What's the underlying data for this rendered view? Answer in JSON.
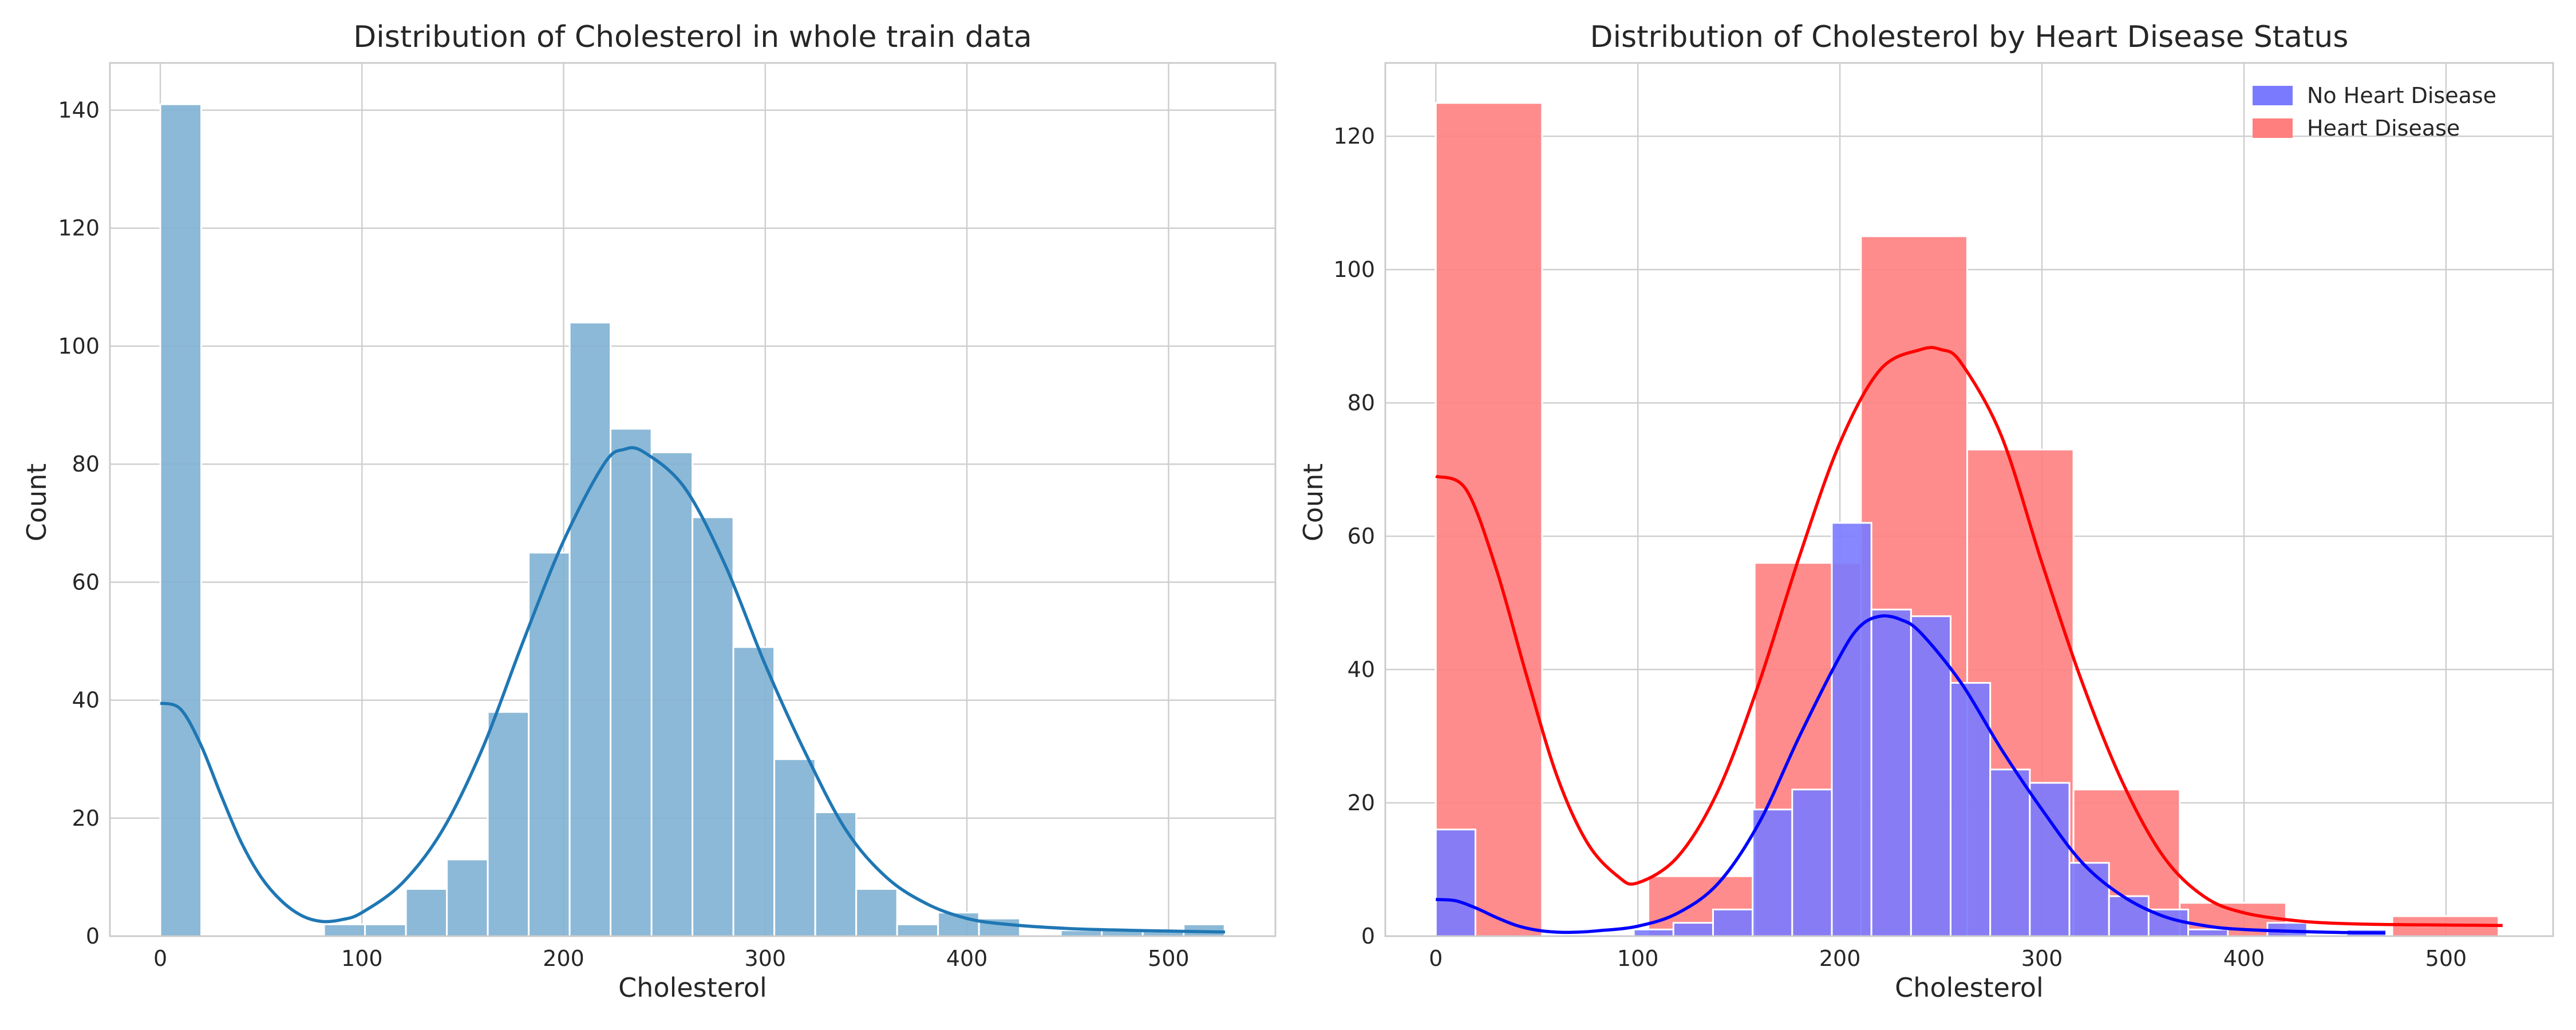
{
  "colors": {
    "all_bars": "#80b1d3",
    "all_kde": "#1f77b4",
    "no_hd_bars": "#7a7aff",
    "no_hd_kde": "#0000ff",
    "hd_bars": "#ff7f7f",
    "hd_kde": "#ff0000",
    "grid": "#cfcfcf",
    "background": "#ffffff"
  },
  "chart_data": [
    {
      "type": "bar",
      "subtype": "histogram",
      "title": "Distribution of Cholesterol in whole train data",
      "xlabel": "Cholesterol",
      "ylabel": "Count",
      "xlim": [
        -25,
        553
      ],
      "ylim": [
        0,
        148
      ],
      "xticks": [
        0,
        100,
        200,
        300,
        400,
        500
      ],
      "yticks": [
        0,
        20,
        40,
        60,
        80,
        100,
        120,
        140
      ],
      "grid": true,
      "bin_width": 20.3,
      "series": [
        {
          "kind": "bars",
          "color_key": "all_bars",
          "bins": [
            {
              "x0": 0,
              "x1": 20.3,
              "count": 141
            },
            {
              "x0": 81.2,
              "x1": 101.5,
              "count": 2
            },
            {
              "x0": 101.5,
              "x1": 121.8,
              "count": 2
            },
            {
              "x0": 121.8,
              "x1": 142.1,
              "count": 8
            },
            {
              "x0": 142.1,
              "x1": 162.4,
              "count": 13
            },
            {
              "x0": 162.4,
              "x1": 182.7,
              "count": 38
            },
            {
              "x0": 182.7,
              "x1": 203.0,
              "count": 65
            },
            {
              "x0": 203.0,
              "x1": 223.3,
              "count": 104
            },
            {
              "x0": 223.3,
              "x1": 243.6,
              "count": 86
            },
            {
              "x0": 243.6,
              "x1": 263.9,
              "count": 82
            },
            {
              "x0": 263.9,
              "x1": 284.2,
              "count": 71
            },
            {
              "x0": 284.2,
              "x1": 304.5,
              "count": 49
            },
            {
              "x0": 304.5,
              "x1": 324.8,
              "count": 30
            },
            {
              "x0": 324.8,
              "x1": 345.1,
              "count": 21
            },
            {
              "x0": 345.1,
              "x1": 365.4,
              "count": 8
            },
            {
              "x0": 365.4,
              "x1": 385.7,
              "count": 2
            },
            {
              "x0": 385.7,
              "x1": 406.0,
              "count": 4
            },
            {
              "x0": 406.0,
              "x1": 426.3,
              "count": 3
            },
            {
              "x0": 446.6,
              "x1": 466.9,
              "count": 1
            },
            {
              "x0": 466.9,
              "x1": 487.2,
              "count": 1
            },
            {
              "x0": 487.2,
              "x1": 507.5,
              "count": 1
            },
            {
              "x0": 507.5,
              "x1": 527.8,
              "count": 2
            }
          ]
        },
        {
          "kind": "kde",
          "color_key": "all_kde",
          "x": [
            0,
            10,
            20,
            30,
            40,
            50,
            60,
            70,
            80,
            90,
            100,
            120,
            140,
            160,
            180,
            200,
            220,
            230,
            240,
            260,
            280,
            300,
            320,
            340,
            360,
            380,
            400,
            420,
            450,
            480,
            510,
            528
          ],
          "y": [
            39.5,
            38.5,
            32.5,
            24,
            16,
            10,
            6,
            3.5,
            2.5,
            2.8,
            4,
            9,
            18,
            32,
            50,
            67,
            80,
            82.5,
            82,
            76,
            63,
            46,
            31,
            18,
            10,
            5.5,
            3,
            2,
            1.3,
            1,
            0.8,
            0.7
          ]
        }
      ]
    },
    {
      "type": "bar",
      "subtype": "histogram",
      "title": "Distribution of Cholesterol by Heart Disease Status",
      "xlabel": "Cholesterol",
      "ylabel": "Count",
      "xlim": [
        -25,
        553
      ],
      "ylim": [
        0,
        131
      ],
      "xticks": [
        0,
        100,
        200,
        300,
        400,
        500
      ],
      "yticks": [
        0,
        20,
        40,
        60,
        80,
        100,
        120
      ],
      "grid": true,
      "legend": {
        "position": "top-right",
        "entries": [
          {
            "label": "No Heart Disease",
            "color_key": "no_hd_bars"
          },
          {
            "label": "Heart Disease",
            "color_key": "hd_bars"
          }
        ]
      },
      "series": [
        {
          "name": "Heart Disease",
          "kind": "bars",
          "color_key": "hd_bars",
          "bins": [
            {
              "x0": 0,
              "x1": 52.6,
              "count": 125
            },
            {
              "x0": 105.2,
              "x1": 157.8,
              "count": 9
            },
            {
              "x0": 157.8,
              "x1": 210.4,
              "count": 56
            },
            {
              "x0": 210.4,
              "x1": 263.0,
              "count": 105
            },
            {
              "x0": 263.0,
              "x1": 315.6,
              "count": 73
            },
            {
              "x0": 315.6,
              "x1": 368.2,
              "count": 22
            },
            {
              "x0": 368.2,
              "x1": 420.8,
              "count": 5
            },
            {
              "x0": 473.4,
              "x1": 526.0,
              "count": 3
            }
          ]
        },
        {
          "name": "No Heart Disease",
          "kind": "bars",
          "color_key": "no_hd_bars",
          "bins": [
            {
              "x0": 0,
              "x1": 19.6,
              "count": 16
            },
            {
              "x0": 98.0,
              "x1": 117.6,
              "count": 1
            },
            {
              "x0": 117.6,
              "x1": 137.2,
              "count": 2
            },
            {
              "x0": 137.2,
              "x1": 156.8,
              "count": 4
            },
            {
              "x0": 156.8,
              "x1": 176.4,
              "count": 19
            },
            {
              "x0": 176.4,
              "x1": 196.0,
              "count": 22
            },
            {
              "x0": 196.0,
              "x1": 215.6,
              "count": 62
            },
            {
              "x0": 215.6,
              "x1": 235.2,
              "count": 49
            },
            {
              "x0": 235.2,
              "x1": 254.8,
              "count": 48
            },
            {
              "x0": 254.8,
              "x1": 274.4,
              "count": 38
            },
            {
              "x0": 274.4,
              "x1": 294.0,
              "count": 25
            },
            {
              "x0": 294.0,
              "x1": 313.6,
              "count": 23
            },
            {
              "x0": 313.6,
              "x1": 333.2,
              "count": 11
            },
            {
              "x0": 333.2,
              "x1": 352.8,
              "count": 6
            },
            {
              "x0": 352.8,
              "x1": 372.4,
              "count": 4
            },
            {
              "x0": 372.4,
              "x1": 392.0,
              "count": 1
            },
            {
              "x0": 411.6,
              "x1": 431.2,
              "count": 2
            },
            {
              "x0": 450.8,
              "x1": 470.4,
              "count": 1
            }
          ]
        },
        {
          "name": "Heart Disease",
          "kind": "kde",
          "color_key": "hd_kde",
          "x": [
            0,
            15,
            30,
            45,
            60,
            75,
            90,
            100,
            120,
            140,
            160,
            180,
            200,
            220,
            240,
            250,
            260,
            280,
            300,
            320,
            340,
            360,
            380,
            400,
            430,
            460,
            490,
            528
          ],
          "y": [
            69,
            67,
            55,
            39,
            24,
            14,
            9,
            8,
            12,
            22,
            38,
            57,
            74,
            85,
            88,
            88,
            86,
            75,
            56,
            38,
            23,
            12,
            6,
            3.5,
            2.2,
            1.8,
            1.7,
            1.6
          ]
        },
        {
          "name": "No Heart Disease",
          "kind": "kde",
          "color_key": "no_hd_kde",
          "x": [
            0,
            10,
            20,
            30,
            40,
            50,
            60,
            70,
            80,
            100,
            120,
            140,
            160,
            180,
            200,
            210,
            220,
            230,
            240,
            260,
            280,
            300,
            320,
            340,
            360,
            380,
            400,
            440,
            470
          ],
          "y": [
            5.5,
            5.3,
            4.2,
            2.8,
            1.6,
            0.9,
            0.6,
            0.6,
            0.8,
            1.5,
            3.5,
            8,
            17,
            30,
            42,
            46.5,
            48,
            47.5,
            45.5,
            38,
            28,
            19,
            11,
            6,
            3,
            1.6,
            1,
            0.6,
            0.5
          ]
        }
      ]
    }
  ]
}
